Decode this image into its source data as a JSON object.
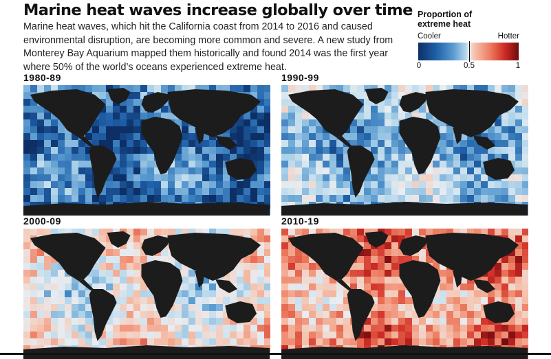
{
  "header": {
    "title": "Marine heat waves increase globally over time",
    "dek": "Marine heat waves, which hit the California coast from 2014 to 2016 and caused environmental disruption, are becoming more common and severe. A new study from Monterey Bay Aquarium mapped them historically and found 2014 was the first year where 50% of the world’s oceans experienced extreme heat."
  },
  "legend": {
    "title": "Proportion of extreme heat",
    "cool_label": "Cooler",
    "hot_label": "Hotter",
    "ticks": [
      "0",
      "0.5",
      "1"
    ],
    "colors": [
      "#0d2f66",
      "#1f60a8",
      "#5a9bd0",
      "#b9d9ec",
      "#e9edf1",
      "#f6c2ad",
      "#ec7a5e",
      "#cf2c26",
      "#6d0a0c"
    ]
  },
  "panels": [
    {
      "label": "1980-89",
      "heat_level": 0.18
    },
    {
      "label": "1990-99",
      "heat_level": 0.34
    },
    {
      "label": "2000-09",
      "heat_level": 0.52
    },
    {
      "label": "2010-19",
      "heat_level": 0.72
    }
  ],
  "colors": {
    "land": "#1c1c1c",
    "ice": "#2a2a2a"
  }
}
